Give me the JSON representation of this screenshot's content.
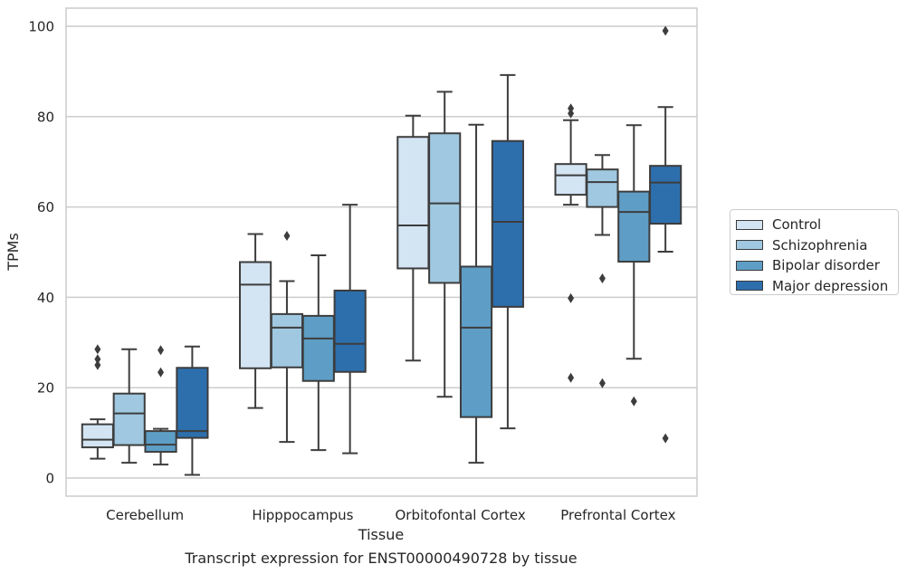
{
  "chart_data": {
    "type": "box",
    "xlabel": "Tissue",
    "ylabel": "TPMs",
    "caption": "Transcript expression for ENST00000490728 by tissue",
    "ylim": [
      -4,
      104
    ],
    "yticks": [
      0,
      20,
      40,
      60,
      80,
      100
    ],
    "grid": true,
    "legend_position": "right",
    "categories": [
      "Cerebellum",
      "Hipppocampus",
      "Orbitofontal Cortex",
      "Prefrontal Cortex"
    ],
    "series": [
      {
        "name": "Control",
        "color": "#d3e4f3",
        "boxes": [
          {
            "whisker_low": 4.3,
            "q1": 6.8,
            "median": 8.5,
            "q3": 11.9,
            "whisker_high": 13.0,
            "outliers": [
              25.0,
              26.3,
              28.5
            ]
          },
          {
            "whisker_low": 15.5,
            "q1": 24.3,
            "median": 42.8,
            "q3": 47.8,
            "whisker_high": 54.0,
            "outliers": []
          },
          {
            "whisker_low": 26.0,
            "q1": 46.4,
            "median": 55.9,
            "q3": 75.5,
            "whisker_high": 80.2,
            "outliers": []
          },
          {
            "whisker_low": 60.5,
            "q1": 62.7,
            "median": 67.0,
            "q3": 69.5,
            "whisker_high": 79.2,
            "outliers": [
              22.2,
              39.8,
              80.7,
              81.8
            ]
          }
        ]
      },
      {
        "name": "Schizophrenia",
        "color": "#a0c8e1",
        "boxes": [
          {
            "whisker_low": 3.4,
            "q1": 7.3,
            "median": 14.3,
            "q3": 18.7,
            "whisker_high": 28.5,
            "outliers": []
          },
          {
            "whisker_low": 8.0,
            "q1": 24.5,
            "median": 33.3,
            "q3": 36.3,
            "whisker_high": 43.6,
            "outliers": [
              53.6
            ]
          },
          {
            "whisker_low": 18.0,
            "q1": 43.2,
            "median": 60.8,
            "q3": 76.3,
            "whisker_high": 85.5,
            "outliers": []
          },
          {
            "whisker_low": 53.8,
            "q1": 60.0,
            "median": 65.5,
            "q3": 68.3,
            "whisker_high": 71.5,
            "outliers": [
              21.0,
              44.2
            ]
          }
        ]
      },
      {
        "name": "Bipolar disorder",
        "color": "#5e9ec6",
        "boxes": [
          {
            "whisker_low": 3.0,
            "q1": 5.8,
            "median": 7.4,
            "q3": 10.4,
            "whisker_high": 10.9,
            "outliers": [
              23.4,
              28.3
            ]
          },
          {
            "whisker_low": 6.2,
            "q1": 21.5,
            "median": 30.9,
            "q3": 35.9,
            "whisker_high": 49.3,
            "outliers": []
          },
          {
            "whisker_low": 3.4,
            "q1": 13.5,
            "median": 33.3,
            "q3": 46.8,
            "whisker_high": 78.2,
            "outliers": []
          },
          {
            "whisker_low": 26.4,
            "q1": 47.9,
            "median": 58.9,
            "q3": 63.4,
            "whisker_high": 78.1,
            "outliers": [
              17.0
            ]
          }
        ]
      },
      {
        "name": "Major depression",
        "color": "#2d6fad",
        "boxes": [
          {
            "whisker_low": 0.7,
            "q1": 8.9,
            "median": 10.4,
            "q3": 24.4,
            "whisker_high": 29.1,
            "outliers": []
          },
          {
            "whisker_low": 5.5,
            "q1": 23.5,
            "median": 29.7,
            "q3": 41.5,
            "whisker_high": 60.5,
            "outliers": []
          },
          {
            "whisker_low": 11.0,
            "q1": 37.9,
            "median": 56.7,
            "q3": 74.6,
            "whisker_high": 89.2,
            "outliers": []
          },
          {
            "whisker_low": 50.1,
            "q1": 56.3,
            "median": 65.4,
            "q3": 69.1,
            "whisker_high": 82.1,
            "outliers": [
              8.8,
              99.0
            ]
          }
        ]
      }
    ]
  }
}
